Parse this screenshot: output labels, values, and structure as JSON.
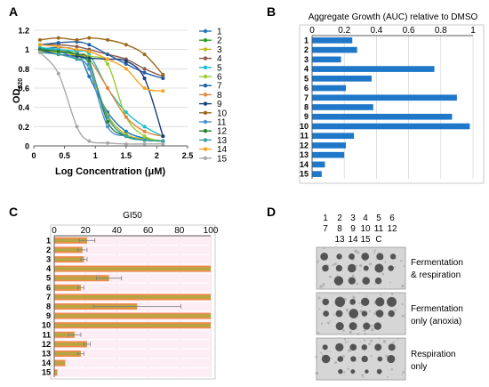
{
  "panels": {
    "a": "A",
    "b": "B",
    "c": "C",
    "d": "D"
  },
  "chart_data": [
    {
      "type": "line",
      "panel": "A",
      "xlabel": "Log Concentration (μM)",
      "ylabel_main": "OD",
      "ylabel_sub": "620",
      "xlim": [
        0,
        2.5
      ],
      "ylim": [
        0,
        1.2
      ],
      "xticks": [
        "0",
        "0.5",
        "1",
        "1.5",
        "2",
        "2.5"
      ],
      "yticks": [
        "0",
        "0.2",
        "0.4",
        "0.6",
        "0.8",
        "1",
        "1.2"
      ],
      "x": [
        0.1,
        0.4,
        0.7,
        0.9,
        1.2,
        1.5,
        1.8,
        2.1
      ],
      "series": [
        {
          "name": "1",
          "color": "#1f77b4",
          "values": [
            1.0,
            1.02,
            0.98,
            0.72,
            0.35,
            0.15,
            0.08,
            0.05
          ]
        },
        {
          "name": "2",
          "color": "#2ca02c",
          "values": [
            1.0,
            1.0,
            0.95,
            0.85,
            0.3,
            0.1,
            0.06,
            0.05
          ]
        },
        {
          "name": "3",
          "color": "#bcbd22",
          "values": [
            0.98,
            0.99,
            0.92,
            0.8,
            0.32,
            0.12,
            0.07,
            0.05
          ]
        },
        {
          "name": "4",
          "color": "#8c564b",
          "values": [
            1.05,
            1.05,
            1.03,
            1.0,
            0.95,
            0.9,
            0.8,
            0.72
          ]
        },
        {
          "name": "5",
          "color": "#17becf",
          "values": [
            1.02,
            1.0,
            0.98,
            0.95,
            0.6,
            0.35,
            0.2,
            0.1
          ]
        },
        {
          "name": "6",
          "color": "#9acd32",
          "values": [
            0.98,
            0.97,
            0.95,
            0.93,
            0.85,
            0.3,
            0.1,
            0.05
          ]
        },
        {
          "name": "7",
          "color": "#1f5fa6",
          "values": [
            1.05,
            1.07,
            1.08,
            1.05,
            0.95,
            0.85,
            0.76,
            0.7
          ]
        },
        {
          "name": "8",
          "color": "#e3873b",
          "values": [
            1.0,
            0.98,
            0.95,
            0.9,
            0.6,
            0.3,
            0.15,
            0.1
          ]
        },
        {
          "name": "9",
          "color": "#1a3e7a",
          "values": [
            1.0,
            0.95,
            0.93,
            0.91,
            0.9,
            0.88,
            0.7,
            0.1
          ]
        },
        {
          "name": "10",
          "color": "#9b6a1c",
          "values": [
            1.1,
            1.12,
            1.1,
            1.12,
            1.1,
            1.05,
            0.95,
            0.74
          ]
        },
        {
          "name": "11",
          "color": "#4a90d9",
          "values": [
            1.0,
            0.98,
            0.9,
            0.8,
            0.2,
            0.1,
            0.06,
            0.05
          ]
        },
        {
          "name": "12",
          "color": "#2e7d32",
          "values": [
            1.0,
            0.98,
            0.95,
            0.88,
            0.25,
            0.1,
            0.06,
            0.05
          ]
        },
        {
          "name": "13",
          "color": "#3aa0a0",
          "values": [
            0.97,
            0.95,
            0.9,
            0.85,
            0.3,
            0.1,
            0.06,
            0.05
          ]
        },
        {
          "name": "14",
          "color": "#f5a623",
          "values": [
            1.05,
            1.03,
            1.0,
            0.98,
            0.9,
            0.8,
            0.6,
            0.57
          ]
        },
        {
          "name": "15",
          "color": "#a9a9a9",
          "values": [
            0.97,
            0.75,
            0.2,
            0.05,
            0.03,
            0.02,
            0.02,
            0.02
          ]
        }
      ]
    },
    {
      "type": "bar",
      "panel": "B",
      "orientation": "horizontal",
      "title": "Aggregate Growth (AUC) relative to DMSO",
      "xlim": [
        0,
        1
      ],
      "xticks": [
        "0",
        "0.2",
        "0.4",
        "0.6",
        "0.8",
        "1"
      ],
      "color": "#1f77c9",
      "categories": [
        "1",
        "2",
        "3",
        "4",
        "5",
        "6",
        "7",
        "8",
        "9",
        "10",
        "11",
        "12",
        "13",
        "14",
        "15"
      ],
      "values": [
        0.25,
        0.28,
        0.18,
        0.76,
        0.37,
        0.21,
        0.9,
        0.38,
        0.87,
        0.98,
        0.26,
        0.21,
        0.2,
        0.08,
        0.06
      ]
    },
    {
      "type": "bar",
      "panel": "C",
      "orientation": "horizontal",
      "title": "GI50",
      "xlim": [
        0,
        100
      ],
      "xticks": [
        "0",
        "20",
        "40",
        "60",
        "80",
        "100"
      ],
      "color_outer": "#f08a4b",
      "color_inner": "#b5a642",
      "categories": [
        "1",
        "2",
        "3",
        "4",
        "5",
        "6",
        "7",
        "8",
        "9",
        "10",
        "11",
        "12",
        "13",
        "14",
        "15"
      ],
      "values": [
        21,
        18,
        19,
        100,
        35,
        17,
        100,
        53,
        100,
        100,
        13,
        21,
        17,
        7,
        2
      ],
      "errors": [
        5,
        3,
        2,
        0,
        8,
        2,
        0,
        28,
        0,
        0,
        4,
        2,
        2,
        0,
        0
      ]
    }
  ],
  "plate": {
    "lane_row1": [
      "1",
      "2",
      "3",
      "4",
      "5",
      "6"
    ],
    "lane_row2": [
      "7",
      "8",
      "9",
      "10",
      "11",
      "12"
    ],
    "lane_row3": [
      "13",
      "14",
      "15",
      "C"
    ],
    "conditions": [
      {
        "line1": "Fermentation",
        "line2": "& respiration"
      },
      {
        "line1": "Fermentation",
        "line2": "only (anoxia)"
      },
      {
        "line1": "Respiration",
        "line2": "only"
      }
    ]
  }
}
